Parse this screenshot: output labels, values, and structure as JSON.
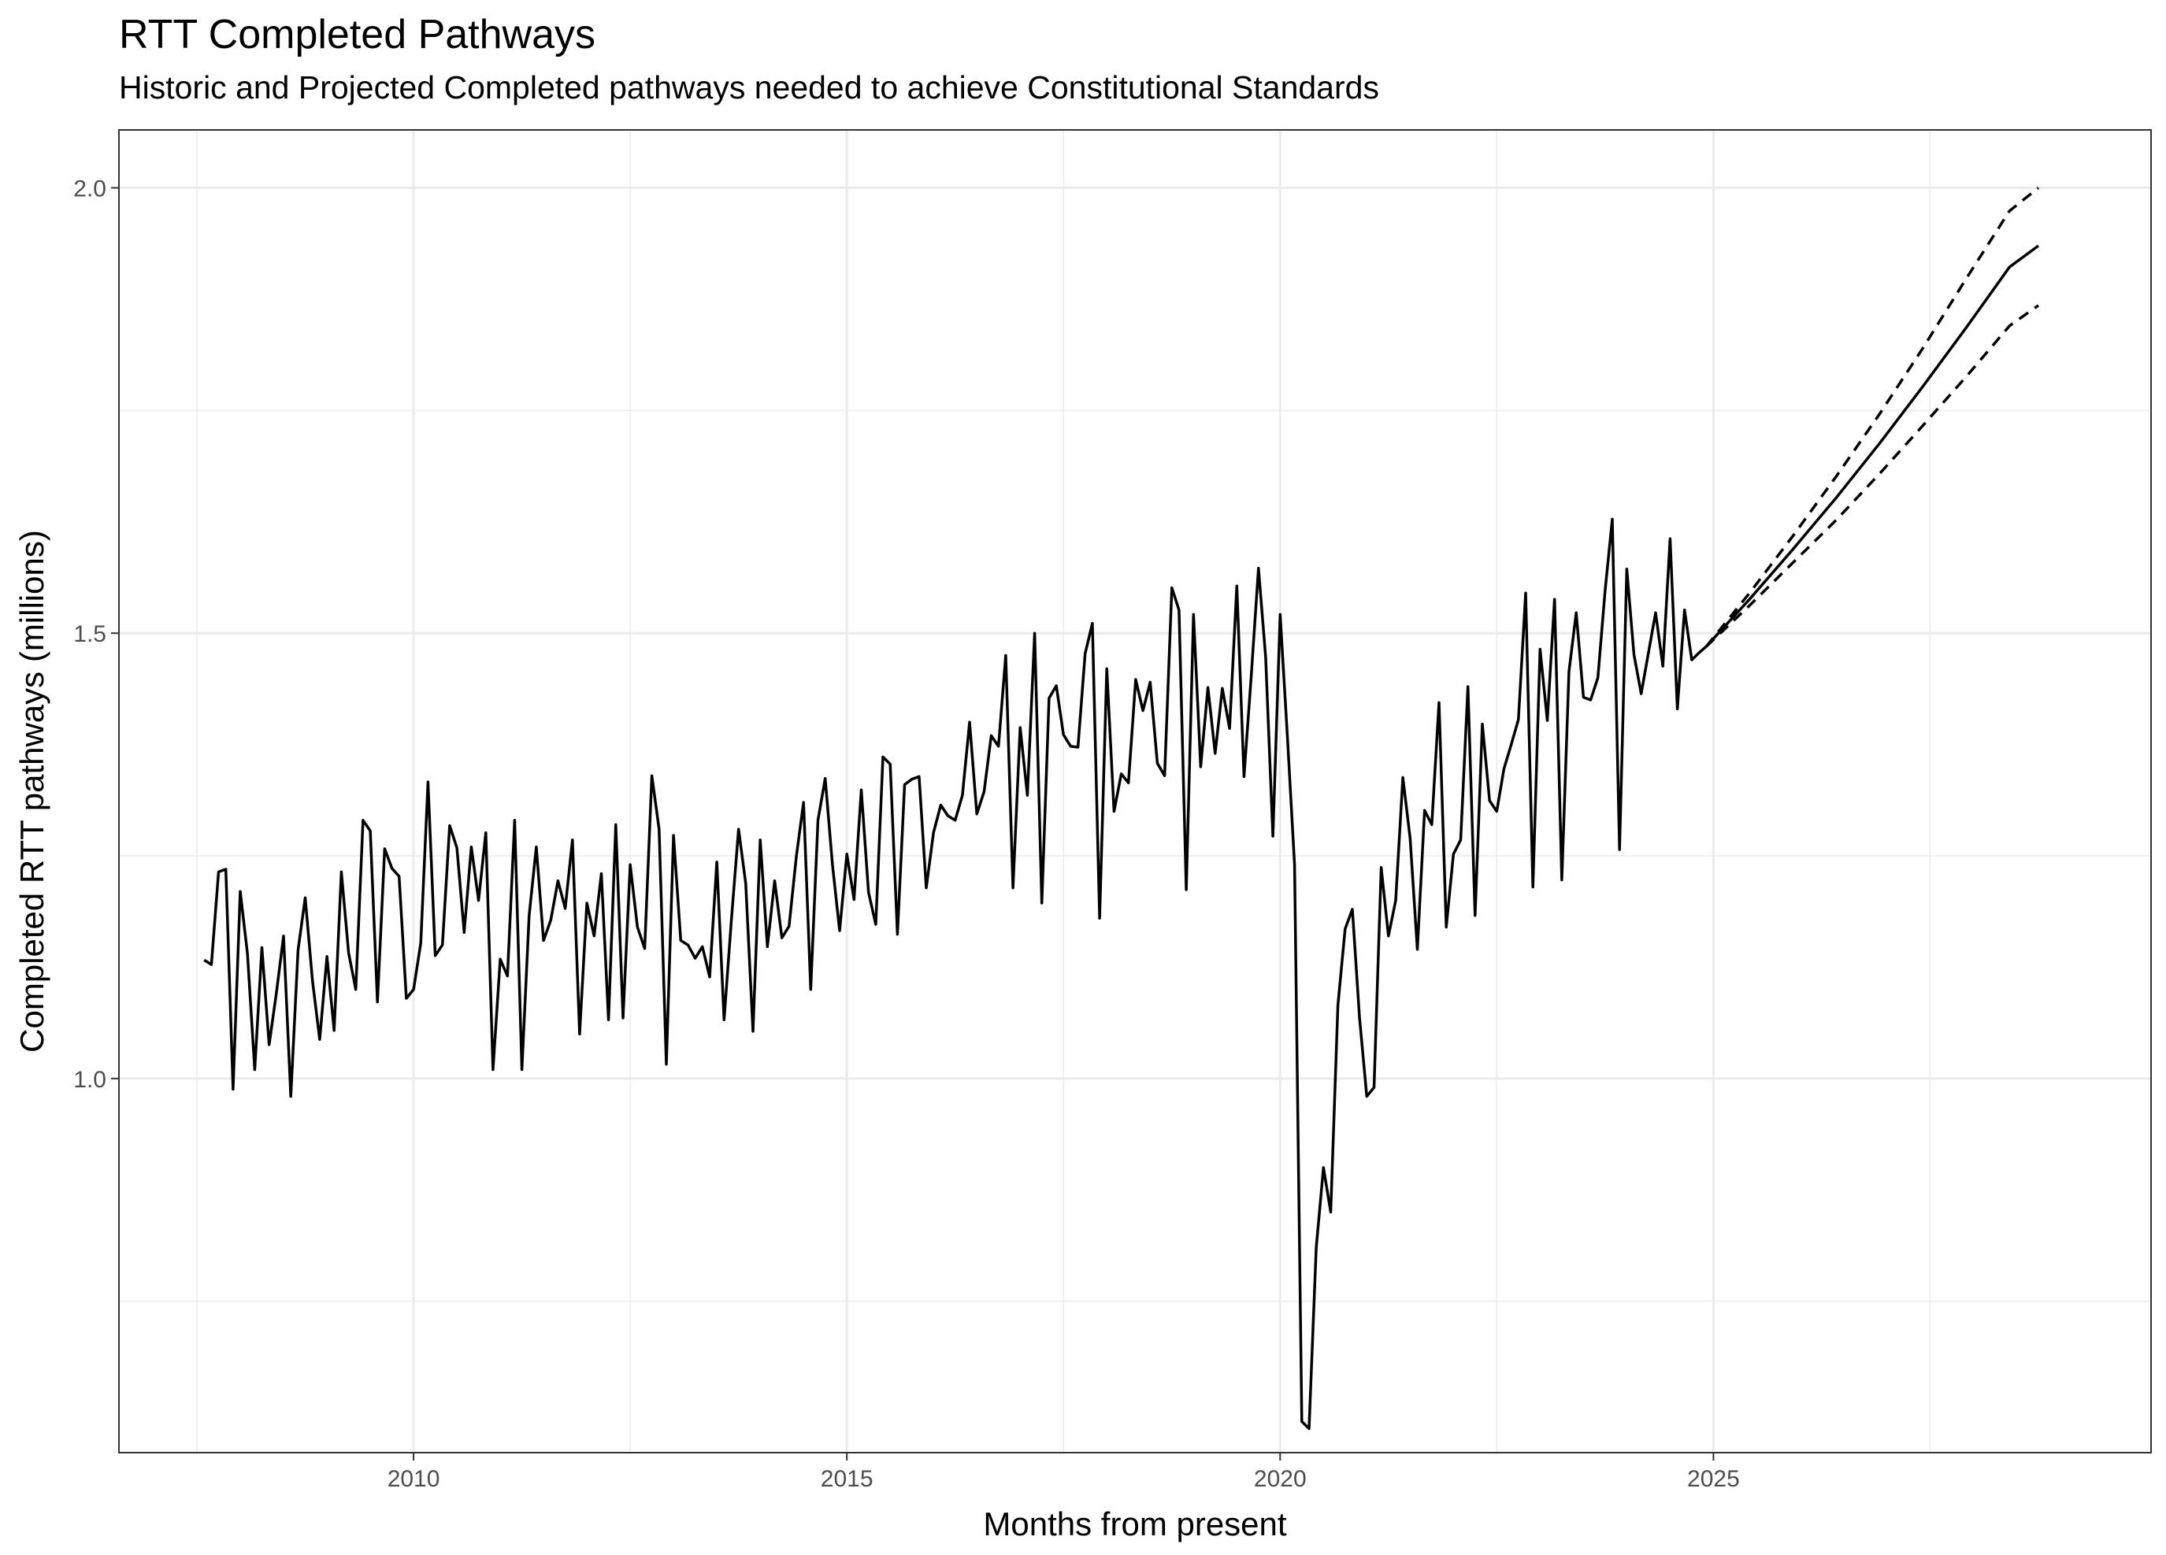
{
  "chart_data": {
    "type": "line",
    "title": "RTT Completed Pathways",
    "subtitle": "Historic and Projected Completed pathways needed to achieve Constitutional Standards",
    "xlabel": "Months from present",
    "ylabel": "Completed RTT pathways (millions)",
    "xlim": [
      2006.6,
      2030.05
    ],
    "ylim": [
      0.58,
      2.065
    ],
    "x_ticks": [
      2010,
      2015,
      2020,
      2025
    ],
    "x_tick_labels": [
      "2010",
      "2015",
      "2020",
      "2025"
    ],
    "x_minor_ticks": [
      2007.5,
      2012.5,
      2017.5,
      2022.5,
      2027.5
    ],
    "y_ticks": [
      1.0,
      1.5,
      2.0
    ],
    "y_tick_labels": [
      "1.0",
      "1.5",
      "2.0"
    ],
    "y_minor_ticks": [
      0.75,
      1.25,
      1.75
    ],
    "grid": true,
    "legend": "none",
    "colors": {
      "line": "#000000",
      "grid": "#ebebeb",
      "panel_border": "#333333"
    },
    "series": [
      {
        "style": "solid",
        "x": [
          "2007-08",
          "2007-09",
          "2007-10",
          "2007-11",
          "2007-12",
          "2008-01",
          "2008-02",
          "2008-03",
          "2008-04",
          "2008-05",
          "2008-06",
          "2008-07",
          "2008-08",
          "2008-09",
          "2008-10",
          "2008-11",
          "2008-12",
          "2009-01",
          "2009-02",
          "2009-03",
          "2009-04",
          "2009-05",
          "2009-06",
          "2009-07",
          "2009-08",
          "2009-09",
          "2009-10",
          "2009-11",
          "2009-12",
          "2010-01",
          "2010-02",
          "2010-03",
          "2010-04",
          "2010-05",
          "2010-06",
          "2010-07",
          "2010-08",
          "2010-09",
          "2010-10",
          "2010-11",
          "2010-12",
          "2011-01",
          "2011-02",
          "2011-03",
          "2011-04",
          "2011-05",
          "2011-06",
          "2011-07",
          "2011-08",
          "2011-09",
          "2011-10",
          "2011-11",
          "2011-12",
          "2012-01",
          "2012-02",
          "2012-03",
          "2012-04",
          "2012-05",
          "2012-06",
          "2012-07",
          "2012-08",
          "2012-09",
          "2012-10",
          "2012-11",
          "2012-12",
          "2013-01",
          "2013-02",
          "2013-03",
          "2013-04",
          "2013-05",
          "2013-06",
          "2013-07",
          "2013-08",
          "2013-09",
          "2013-10",
          "2013-11",
          "2013-12",
          "2014-01",
          "2014-02",
          "2014-03",
          "2014-04",
          "2014-05",
          "2014-06",
          "2014-07",
          "2014-08",
          "2014-09",
          "2014-10",
          "2014-11",
          "2014-12",
          "2015-01",
          "2015-02",
          "2015-03",
          "2015-04",
          "2015-05",
          "2015-06",
          "2015-07",
          "2015-08",
          "2015-09",
          "2015-10",
          "2015-11",
          "2015-12",
          "2016-01",
          "2016-02",
          "2016-03",
          "2016-04",
          "2016-05",
          "2016-06",
          "2016-07",
          "2016-08",
          "2016-09",
          "2016-10",
          "2016-11",
          "2016-12",
          "2017-01",
          "2017-02",
          "2017-03",
          "2017-04",
          "2017-05",
          "2017-06",
          "2017-07",
          "2017-08",
          "2017-09",
          "2017-10",
          "2017-11",
          "2017-12",
          "2018-01",
          "2018-02",
          "2018-03",
          "2018-04",
          "2018-05",
          "2018-06",
          "2018-07",
          "2018-08",
          "2018-09",
          "2018-10",
          "2018-11",
          "2018-12",
          "2019-01",
          "2019-02",
          "2019-03",
          "2019-04",
          "2019-05",
          "2019-06",
          "2019-07",
          "2019-08",
          "2019-09",
          "2019-10",
          "2019-11",
          "2019-12",
          "2020-01",
          "2020-02",
          "2020-03",
          "2020-04",
          "2020-05",
          "2020-06",
          "2020-07",
          "2020-08",
          "2020-09",
          "2020-10",
          "2020-11",
          "2020-12",
          "2021-01",
          "2021-02",
          "2021-03",
          "2021-04",
          "2021-05",
          "2021-06",
          "2021-07",
          "2021-08",
          "2021-09",
          "2021-10",
          "2021-11",
          "2021-12",
          "2022-01",
          "2022-02",
          "2022-03",
          "2022-04",
          "2022-05",
          "2022-06",
          "2022-07",
          "2022-08",
          "2022-09",
          "2022-10",
          "2022-11",
          "2022-12",
          "2023-01",
          "2023-02",
          "2023-03",
          "2023-04",
          "2023-05",
          "2023-06",
          "2023-07",
          "2023-08",
          "2023-09",
          "2023-10",
          "2023-11",
          "2023-12",
          "2024-01",
          "2024-02",
          "2024-03",
          "2024-04",
          "2024-05",
          "2024-06",
          "2024-07",
          "2024-08",
          "2024-09",
          "2024-10",
          "2024-11",
          "2024-12"
        ],
        "y": [
          1.133,
          1.128,
          1.232,
          1.235,
          0.988,
          1.21,
          1.14,
          1.01,
          1.147,
          1.038,
          1.096,
          1.16,
          0.98,
          1.144,
          1.203,
          1.11,
          1.044,
          1.137,
          1.054,
          1.232,
          1.141,
          1.1,
          1.29,
          1.278,
          1.086,
          1.258,
          1.236,
          1.227,
          1.09,
          1.1,
          1.152,
          1.333,
          1.138,
          1.15,
          1.284,
          1.259,
          1.164,
          1.26,
          1.2,
          1.276,
          1.01,
          1.134,
          1.115,
          1.29,
          1.01,
          1.183,
          1.26,
          1.155,
          1.178,
          1.222,
          1.191,
          1.268,
          1.05,
          1.197,
          1.16,
          1.23,
          1.066,
          1.285,
          1.068,
          1.24,
          1.17,
          1.146,
          1.34,
          1.28,
          1.016,
          1.273,
          1.155,
          1.15,
          1.135,
          1.148,
          1.114,
          1.243,
          1.066,
          1.177,
          1.28,
          1.219,
          1.053,
          1.268,
          1.148,
          1.222,
          1.158,
          1.171,
          1.249,
          1.31,
          1.1,
          1.29,
          1.337,
          1.241,
          1.166,
          1.252,
          1.201,
          1.324,
          1.209,
          1.173,
          1.361,
          1.353,
          1.162,
          1.33,
          1.336,
          1.339,
          1.214,
          1.276,
          1.307,
          1.295,
          1.29,
          1.318,
          1.4,
          1.297,
          1.322,
          1.385,
          1.373,
          1.475,
          1.214,
          1.394,
          1.318,
          1.5,
          1.197,
          1.427,
          1.441,
          1.386,
          1.373,
          1.372,
          1.477,
          1.511,
          1.18,
          1.46,
          1.3,
          1.342,
          1.332,
          1.448,
          1.413,
          1.445,
          1.354,
          1.34,
          1.551,
          1.526,
          1.212,
          1.521,
          1.35,
          1.439,
          1.365,
          1.438,
          1.393,
          1.553,
          1.339,
          1.452,
          1.573,
          1.473,
          1.272,
          1.521,
          1.384,
          1.24,
          0.615,
          0.607,
          0.81,
          0.9,
          0.85,
          1.082,
          1.168,
          1.19,
          1.068,
          0.98,
          0.99,
          1.237,
          1.16,
          1.2,
          1.338,
          1.27,
          1.145,
          1.301,
          1.285,
          1.422,
          1.17,
          1.252,
          1.268,
          1.44,
          1.183,
          1.398,
          1.312,
          1.3,
          1.348,
          1.375,
          1.403,
          1.545,
          1.215,
          1.482,
          1.402,
          1.538,
          1.223,
          1.457,
          1.523,
          1.428,
          1.425,
          1.45,
          1.548,
          1.628,
          1.257,
          1.572,
          1.476,
          1.432,
          1.478,
          1.523,
          1.463,
          1.606,
          1.415,
          1.526,
          1.47,
          1.478,
          1.485
        ]
      },
      {
        "style": "solid",
        "x": [
          "2024-12",
          "2025-06",
          "2025-12",
          "2026-06",
          "2026-12",
          "2027-06",
          "2027-12",
          "2028-06",
          "2028-10"
        ],
        "y": [
          1.485,
          1.538,
          1.594,
          1.652,
          1.713,
          1.777,
          1.843,
          1.911,
          1.935
        ]
      },
      {
        "style": "dashed",
        "x": [
          "2024-12",
          "2025-06",
          "2025-12",
          "2026-06",
          "2026-12",
          "2027-06",
          "2027-12",
          "2028-06",
          "2028-10"
        ],
        "y": [
          1.485,
          1.545,
          1.609,
          1.676,
          1.746,
          1.82,
          1.898,
          1.974,
          2.0
        ]
      },
      {
        "style": "dashed",
        "x": [
          "2024-12",
          "2025-06",
          "2025-12",
          "2026-06",
          "2026-12",
          "2027-06",
          "2027-12",
          "2028-06",
          "2028-10"
        ],
        "y": [
          1.485,
          1.531,
          1.579,
          1.627,
          1.679,
          1.733,
          1.788,
          1.845,
          1.868
        ]
      }
    ]
  }
}
